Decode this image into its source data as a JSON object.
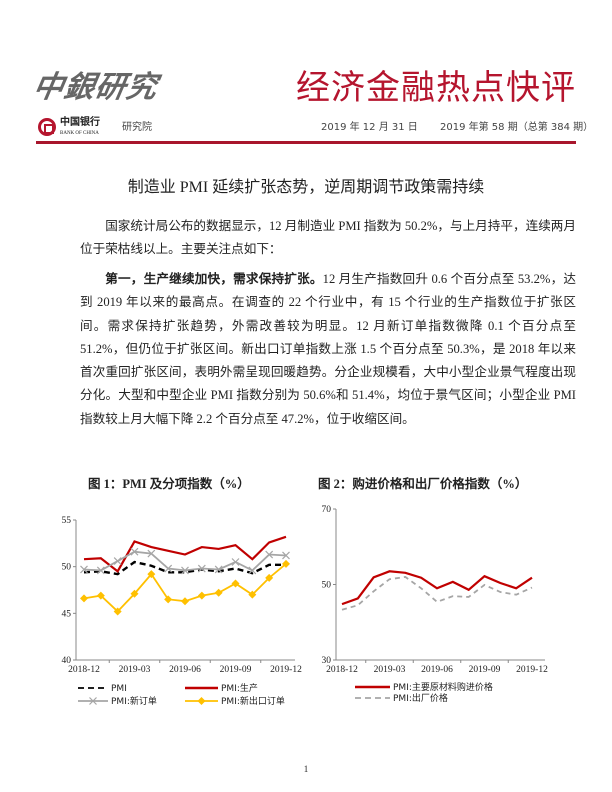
{
  "header": {
    "brand_script": "中銀研究",
    "report_title": "经济金融热点快评",
    "bank_logo_cn": "中国银行",
    "bank_logo_en": "BANK OF CHINA",
    "department": "研究院",
    "date": "2019 年 12 月 31 日",
    "issue": "2019 年第 58 期（总第 384 期）",
    "accent_color": "#b5152e"
  },
  "article": {
    "headline": "制造业 PMI 延续扩张态势，逆周期调节政策需持续",
    "paragraph1": "国家统计局公布的数据显示，12 月制造业 PMI 指数为 50.2%，与上月持平，连续两月位于荣枯线以上。主要关注点如下：",
    "paragraph2_lead": "第一，生产继续加快，需求保持扩张。",
    "paragraph2_body": "12 月生产指数回升 0.6 个百分点至 53.2%，达到 2019 年以来的最高点。在调查的 22 个行业中，有 15 个行业的生产指数位于扩张区间。需求保持扩张趋势，外需改善较为明显。12 月新订单指数微降 0.1 个百分点至 51.2%，但仍位于扩张区间。新出口订单指数上涨 1.5 个百分点至 50.3%，是 2018 年以来首次重回扩张区间，表明外需呈现回暖趋势。分企业规模看，大中小型企业景气程度出现分化。大型和中型企业 PMI 指数分别为 50.6%和 51.4%，均位于景气区间；小型企业 PMI 指数较上月大幅下降 2.2 个百分点至 47.2%，位于收缩区间。"
  },
  "page_number": "1",
  "chart_data": [
    {
      "type": "line",
      "title": "图 1：PMI 及分项指数（%）",
      "categories": [
        "2018-12",
        "2019-01",
        "2019-02",
        "2019-03",
        "2019-04",
        "2019-05",
        "2019-06",
        "2019-07",
        "2019-08",
        "2019-09",
        "2019-10",
        "2019-11",
        "2019-12"
      ],
      "tick_labels": [
        "2018-12",
        "2019-03",
        "2019-06",
        "2019-09",
        "2019-12"
      ],
      "ylim": [
        40,
        55
      ],
      "yticks": [
        "40",
        "45",
        "50",
        "55"
      ],
      "legend": "bottom",
      "series": [
        {
          "name": "PMI",
          "color": "#000000",
          "style": "dashed",
          "values": [
            49.4,
            49.5,
            49.2,
            50.5,
            50.1,
            49.4,
            49.4,
            49.7,
            49.5,
            49.8,
            49.3,
            50.2,
            50.2
          ]
        },
        {
          "name": "PMI:生产",
          "color": "#c00000",
          "style": "solid",
          "values": [
            50.8,
            50.9,
            49.5,
            52.7,
            52.1,
            51.7,
            51.3,
            52.1,
            51.9,
            52.3,
            50.8,
            52.6,
            53.2
          ]
        },
        {
          "name": "PMI:新订单",
          "color": "#a6a6a6",
          "style": "solid-x",
          "values": [
            49.7,
            49.6,
            50.6,
            51.6,
            51.4,
            49.8,
            49.6,
            49.8,
            49.7,
            50.5,
            49.6,
            51.3,
            51.2
          ]
        },
        {
          "name": "PMI:新出口订单",
          "color": "#ffc000",
          "style": "solid-diamond",
          "values": [
            46.6,
            46.9,
            45.2,
            47.1,
            49.2,
            46.5,
            46.3,
            46.9,
            47.2,
            48.2,
            47.0,
            48.8,
            50.3
          ]
        }
      ]
    },
    {
      "type": "line",
      "title": "图 2：购进价格和出厂价格指数（%）",
      "categories": [
        "2018-12",
        "2019-01",
        "2019-02",
        "2019-03",
        "2019-04",
        "2019-05",
        "2019-06",
        "2019-07",
        "2019-08",
        "2019-09",
        "2019-10",
        "2019-11",
        "2019-12"
      ],
      "tick_labels": [
        "2018-12",
        "2019-03",
        "2019-06",
        "2019-09",
        "2019-12"
      ],
      "ylim": [
        30,
        70
      ],
      "yticks": [
        "30",
        "50",
        "70"
      ],
      "legend": "bottom",
      "series": [
        {
          "name": "PMI:主要原材料购进价格",
          "color": "#c00000",
          "style": "solid",
          "values": [
            44.8,
            46.3,
            51.9,
            53.5,
            53.1,
            51.8,
            49.0,
            50.7,
            48.6,
            52.2,
            50.4,
            49.0,
            51.8
          ]
        },
        {
          "name": "PMI:出厂价格",
          "color": "#a6a6a6",
          "style": "dashed",
          "values": [
            43.3,
            44.5,
            48.2,
            51.4,
            52.0,
            49.0,
            45.4,
            46.9,
            46.7,
            49.9,
            48.0,
            47.3,
            49.2
          ]
        }
      ]
    }
  ]
}
